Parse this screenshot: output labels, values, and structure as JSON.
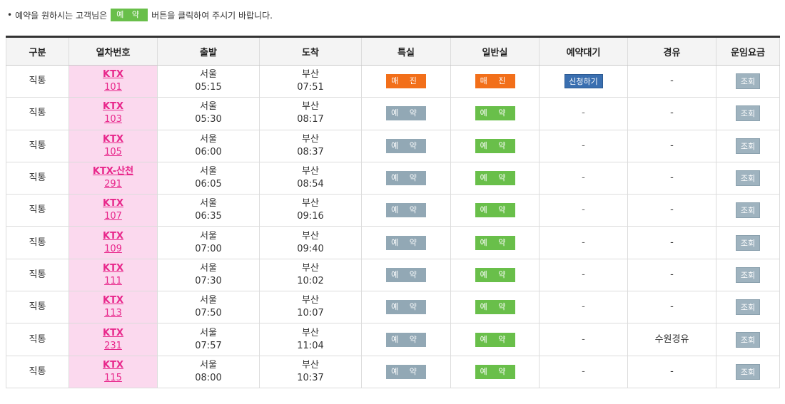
{
  "notice": {
    "bullet": "•",
    "prefix": "예약을 원하시는 고객님은",
    "button_label": "예 약",
    "suffix": "버튼을 클릭하여 주시기 바랍니다."
  },
  "columns": [
    "구분",
    "열차번호",
    "출발",
    "도착",
    "특실",
    "일반실",
    "예약대기",
    "경유",
    "운임요금"
  ],
  "rows": [
    {
      "type": "직통",
      "train_name": "KTX",
      "train_no": "101",
      "dep_station": "서울",
      "dep_time": "05:15",
      "arr_station": "부산",
      "arr_time": "07:51",
      "special": "매 진",
      "special_style": "orange",
      "general": "매 진",
      "general_style": "orange",
      "waitlist": "신청하기",
      "via": "-",
      "fare": "조회"
    },
    {
      "type": "직통",
      "train_name": "KTX",
      "train_no": "103",
      "dep_station": "서울",
      "dep_time": "05:30",
      "arr_station": "부산",
      "arr_time": "08:17",
      "special": "예 약",
      "special_style": "gray",
      "general": "예 약",
      "general_style": "green",
      "waitlist": "-",
      "via": "-",
      "fare": "조회"
    },
    {
      "type": "직통",
      "train_name": "KTX",
      "train_no": "105",
      "dep_station": "서울",
      "dep_time": "06:00",
      "arr_station": "부산",
      "arr_time": "08:37",
      "special": "예 약",
      "special_style": "gray",
      "general": "예 약",
      "general_style": "green",
      "waitlist": "-",
      "via": "-",
      "fare": "조회"
    },
    {
      "type": "직통",
      "train_name": "KTX-산천",
      "train_no": "291",
      "dep_station": "서울",
      "dep_time": "06:05",
      "arr_station": "부산",
      "arr_time": "08:54",
      "special": "예 약",
      "special_style": "gray",
      "general": "예 약",
      "general_style": "green",
      "waitlist": "-",
      "via": "-",
      "fare": "조회"
    },
    {
      "type": "직통",
      "train_name": "KTX",
      "train_no": "107",
      "dep_station": "서울",
      "dep_time": "06:35",
      "arr_station": "부산",
      "arr_time": "09:16",
      "special": "예 약",
      "special_style": "gray",
      "general": "예 약",
      "general_style": "green",
      "waitlist": "-",
      "via": "-",
      "fare": "조회"
    },
    {
      "type": "직통",
      "train_name": "KTX",
      "train_no": "109",
      "dep_station": "서울",
      "dep_time": "07:00",
      "arr_station": "부산",
      "arr_time": "09:40",
      "special": "예 약",
      "special_style": "gray",
      "general": "예 약",
      "general_style": "green",
      "waitlist": "-",
      "via": "-",
      "fare": "조회"
    },
    {
      "type": "직통",
      "train_name": "KTX",
      "train_no": "111",
      "dep_station": "서울",
      "dep_time": "07:30",
      "arr_station": "부산",
      "arr_time": "10:02",
      "special": "예 약",
      "special_style": "gray",
      "general": "예 약",
      "general_style": "green",
      "waitlist": "-",
      "via": "-",
      "fare": "조회"
    },
    {
      "type": "직통",
      "train_name": "KTX",
      "train_no": "113",
      "dep_station": "서울",
      "dep_time": "07:50",
      "arr_station": "부산",
      "arr_time": "10:07",
      "special": "예 약",
      "special_style": "gray",
      "general": "예 약",
      "general_style": "green",
      "waitlist": "-",
      "via": "-",
      "fare": "조회"
    },
    {
      "type": "직통",
      "train_name": "KTX",
      "train_no": "231",
      "dep_station": "서울",
      "dep_time": "07:57",
      "arr_station": "부산",
      "arr_time": "11:04",
      "special": "예 약",
      "special_style": "gray",
      "general": "예 약",
      "general_style": "green",
      "waitlist": "-",
      "via": "수원경유",
      "fare": "조회"
    },
    {
      "type": "직통",
      "train_name": "KTX",
      "train_no": "115",
      "dep_station": "서울",
      "dep_time": "08:00",
      "arr_station": "부산",
      "arr_time": "10:37",
      "special": "예 약",
      "special_style": "gray",
      "general": "예 약",
      "general_style": "green",
      "waitlist": "-",
      "via": "-",
      "fare": "조회"
    }
  ],
  "colors": {
    "reserve_green": "#69bf4a",
    "reserve_gray": "#92a8b5",
    "soldout_orange": "#f26f1a",
    "waitlist_blue": "#3a6fb0",
    "train_pink": "#e8278b",
    "train_cell_bg": "#fbd9ee"
  }
}
